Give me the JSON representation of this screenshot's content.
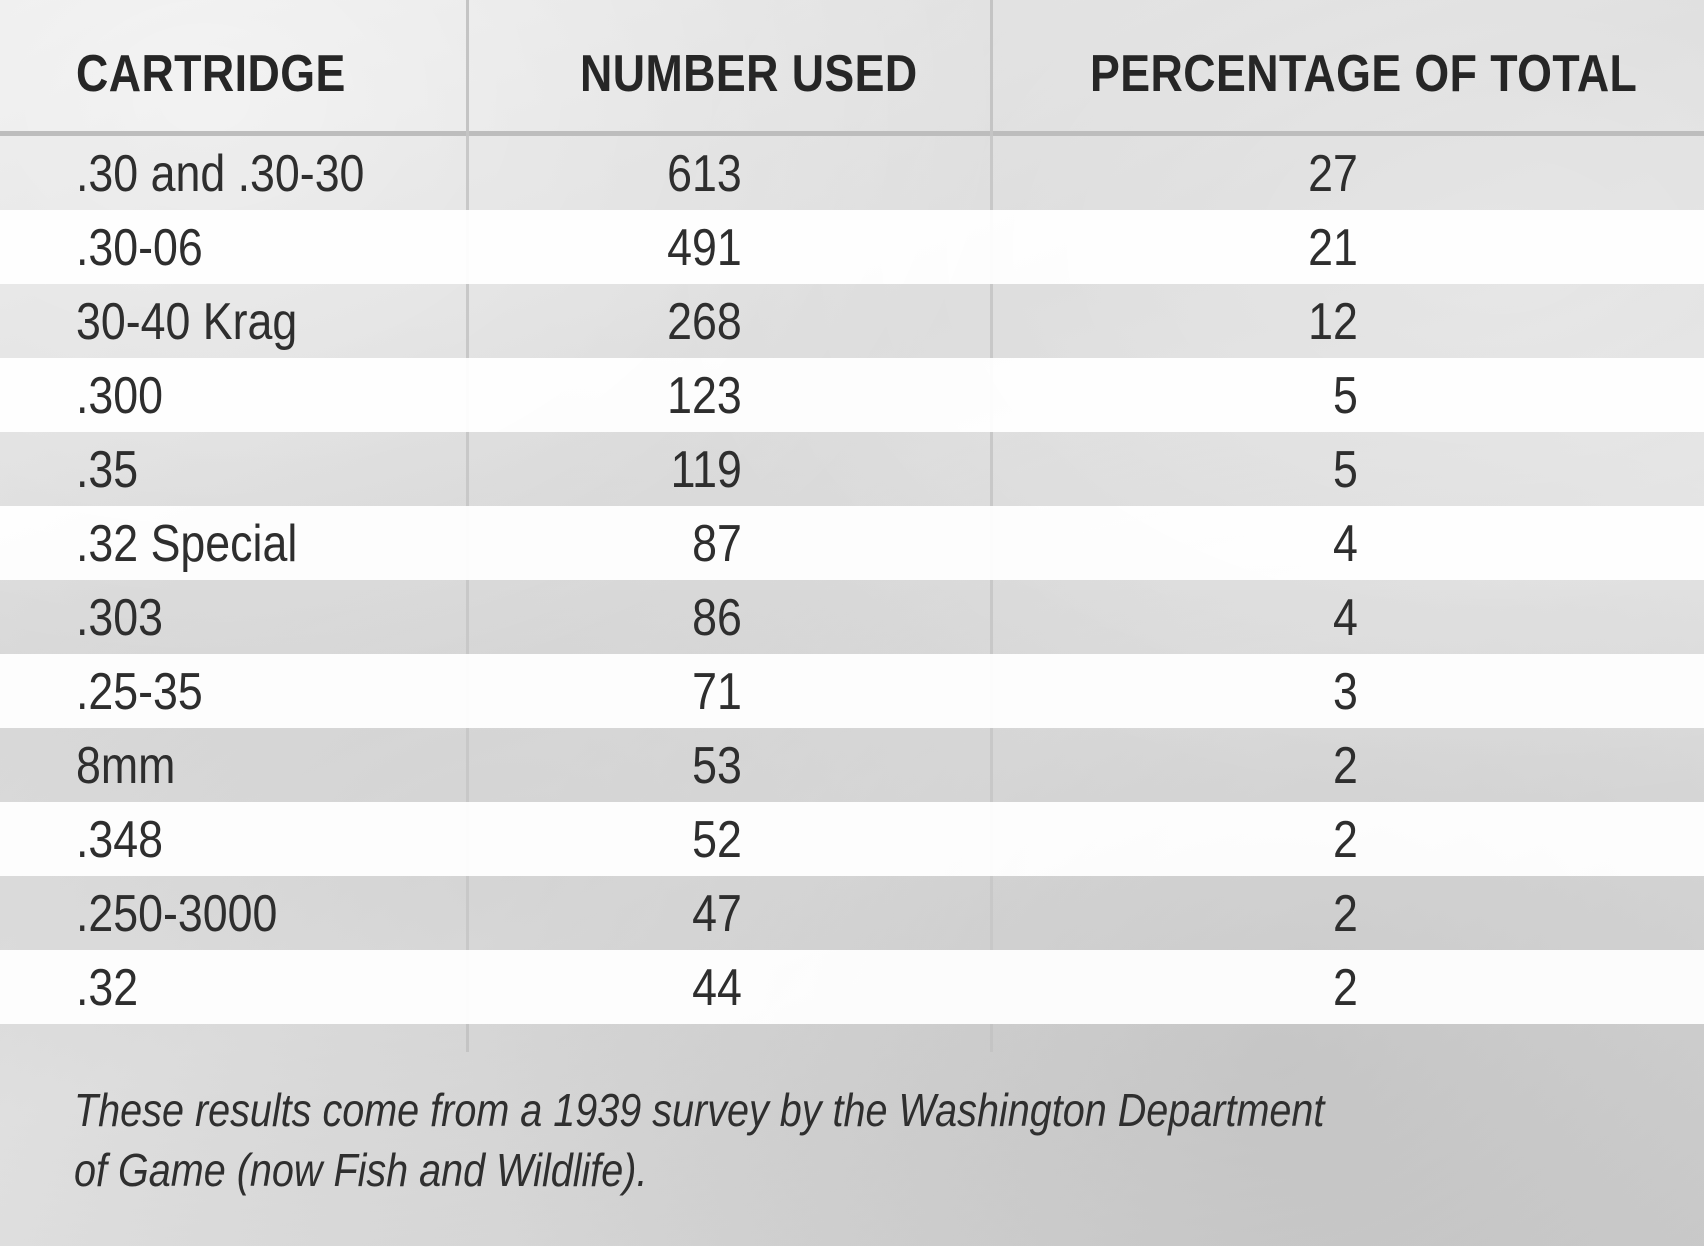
{
  "table": {
    "headers": {
      "cartridge": "CARTRIDGE",
      "number_used": "NUMBER USED",
      "percentage": "PERCENTAGE OF TOTAL"
    },
    "rows": [
      {
        "cartridge": ".30 and .30-30",
        "number_used": "613",
        "percentage": "27"
      },
      {
        "cartridge": ".30-06",
        "number_used": "491",
        "percentage": "21"
      },
      {
        "cartridge": "30-40 Krag",
        "number_used": "268",
        "percentage": "12"
      },
      {
        "cartridge": ".300",
        "number_used": "123",
        "percentage": "5"
      },
      {
        "cartridge": ".35",
        "number_used": "119",
        "percentage": "5"
      },
      {
        "cartridge": ".32 Special",
        "number_used": "87",
        "percentage": "4"
      },
      {
        "cartridge": ".303",
        "number_used": "86",
        "percentage": "4"
      },
      {
        "cartridge": ".25-35",
        "number_used": "71",
        "percentage": "3"
      },
      {
        "cartridge": "8mm",
        "number_used": "53",
        "percentage": "2"
      },
      {
        "cartridge": ".348",
        "number_used": "52",
        "percentage": "2"
      },
      {
        "cartridge": ".250-3000",
        "number_used": "47",
        "percentage": "2"
      },
      {
        "cartridge": ".32",
        "number_used": "44",
        "percentage": "2"
      }
    ]
  },
  "footnote": "These results come from a 1939 survey by the Washington Department of Game (now Fish and Wildlife)."
}
